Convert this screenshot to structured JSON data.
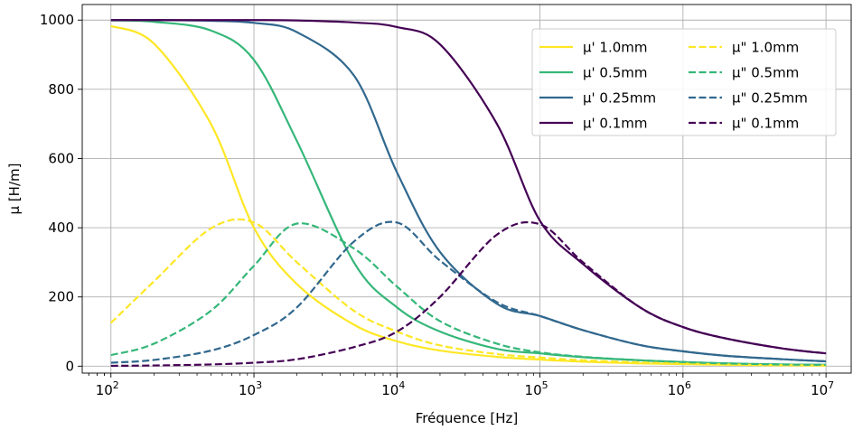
{
  "chart_data": {
    "type": "line",
    "title": "",
    "xlabel": "Fréquence [Hz]",
    "ylabel": "µ [H/m]",
    "xscale": "log",
    "xlim": [
      63,
      15000000
    ],
    "ylim": [
      -20,
      1045
    ],
    "grid": true,
    "legend_position": "top-right",
    "x_ticks": [
      {
        "value": 100,
        "base": "10",
        "exp": "2"
      },
      {
        "value": 1000,
        "base": "10",
        "exp": "3"
      },
      {
        "value": 10000,
        "base": "10",
        "exp": "4"
      },
      {
        "value": 100000,
        "base": "10",
        "exp": "5"
      },
      {
        "value": 1000000,
        "base": "10",
        "exp": "6"
      },
      {
        "value": 10000000,
        "base": "10",
        "exp": "7"
      }
    ],
    "y_ticks": [
      {
        "value": 0,
        "label": "0"
      },
      {
        "value": 200,
        "label": "200"
      },
      {
        "value": 400,
        "label": "400"
      },
      {
        "value": 600,
        "label": "600"
      },
      {
        "value": 800,
        "label": "800"
      },
      {
        "value": 1000,
        "label": "1000"
      }
    ],
    "x": [
      100,
      200,
      500,
      1000,
      2000,
      5000,
      10000,
      20000,
      50000,
      100000,
      200000,
      500000,
      1000000,
      2000000,
      5000000,
      10000000
    ],
    "series": [
      {
        "name": "µ' 1.0mm",
        "color": "#fde725",
        "dash": "solid",
        "values": [
          983,
          932,
          700,
          400,
          237,
          120,
          72,
          45,
          27,
          19,
          13,
          8,
          6,
          4,
          2.6,
          1.9
        ]
      },
      {
        "name": "µ' 0.5mm",
        "color": "#35b779",
        "dash": "solid",
        "values": [
          999,
          995,
          970,
          885,
          650,
          300,
          170,
          100,
          50,
          37,
          26,
          17,
          12,
          8,
          5,
          4
        ]
      },
      {
        "name": "µ' 0.25mm",
        "color": "#31688e",
        "dash": "solid",
        "values": [
          1000,
          1000,
          998,
          992,
          965,
          840,
          560,
          330,
          180,
          145,
          104,
          61,
          43,
          30,
          20,
          14
        ]
      },
      {
        "name": "µ' 0.1mm",
        "color": "#440154",
        "dash": "solid",
        "values": [
          1000,
          1000,
          1000,
          1000,
          999,
          993,
          980,
          930,
          700,
          420,
          295,
          170,
          113,
          80,
          51,
          37
        ]
      },
      {
        "name": "µ\" 1.0mm",
        "color": "#fde725",
        "dash": "dashed",
        "values": [
          125,
          245,
          398,
          415,
          300,
          160,
          100,
          60,
          35,
          25,
          17,
          11,
          8,
          5,
          3,
          2
        ]
      },
      {
        "name": "µ\" 0.5mm",
        "color": "#35b779",
        "dash": "dashed",
        "values": [
          32,
          65,
          160,
          290,
          412,
          340,
          230,
          130,
          65,
          40,
          27,
          17,
          12,
          8,
          5,
          4
        ]
      },
      {
        "name": "µ\" 0.25mm",
        "color": "#31688e",
        "dash": "dashed",
        "values": [
          10,
          18,
          45,
          90,
          170,
          360,
          415,
          305,
          185,
          145,
          104,
          61,
          43,
          30,
          20,
          14
        ]
      },
      {
        "name": "µ\" 0.1mm",
        "color": "#440154",
        "dash": "dashed",
        "values": [
          1,
          2,
          5,
          10,
          20,
          55,
          100,
          200,
          380,
          410,
          300,
          170,
          113,
          80,
          51,
          37
        ]
      }
    ]
  }
}
